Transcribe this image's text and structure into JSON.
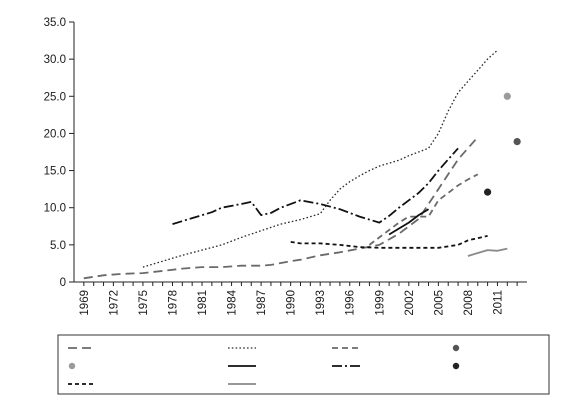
{
  "chart_data": {
    "type": "line",
    "title": "",
    "xlabel": "",
    "ylabel": "",
    "xlim": [
      1968,
      2014
    ],
    "ylim": [
      0,
      35
    ],
    "x_ticks": [
      "1969",
      "1972",
      "1975",
      "1978",
      "1981",
      "1984",
      "1987",
      "1990",
      "1993",
      "1996",
      "1999",
      "2002",
      "2005",
      "2008",
      "2011"
    ],
    "y_ticks": [
      "0",
      "5.0",
      "10.0",
      "15.0",
      "20.0",
      "25.0",
      "30.0",
      "35.0"
    ],
    "grid": false,
    "legend": "bottom",
    "series": [
      {
        "key": "long-grey-dash",
        "style": "dashed",
        "color": "#6a6a6a",
        "points": [
          [
            1969,
            0.5
          ],
          [
            1971,
            0.9
          ],
          [
            1973,
            1.1
          ],
          [
            1975,
            1.2
          ],
          [
            1977,
            1.5
          ],
          [
            1979,
            1.8
          ],
          [
            1981,
            2.0
          ],
          [
            1983,
            2.0
          ],
          [
            1985,
            2.2
          ],
          [
            1987,
            2.2
          ],
          [
            1988,
            2.3
          ],
          [
            1990,
            2.8
          ],
          [
            1991,
            3.0
          ],
          [
            1993,
            3.6
          ],
          [
            1995,
            4.0
          ],
          [
            1997,
            4.5
          ],
          [
            1999,
            5.0
          ],
          [
            2001,
            6.5
          ],
          [
            2003,
            8.5
          ],
          [
            2004,
            10.5
          ],
          [
            2005,
            12.5
          ],
          [
            2006,
            14.5
          ],
          [
            2007,
            16.5
          ],
          [
            2008,
            18.0
          ],
          [
            2009,
            19.5
          ]
        ]
      },
      {
        "key": "dotted",
        "style": "dotted",
        "color": "#2a2a2a",
        "points": [
          [
            1975,
            2.0
          ],
          [
            1977,
            2.8
          ],
          [
            1979,
            3.6
          ],
          [
            1981,
            4.3
          ],
          [
            1983,
            5.0
          ],
          [
            1985,
            6.0
          ],
          [
            1987,
            6.9
          ],
          [
            1989,
            7.8
          ],
          [
            1991,
            8.4
          ],
          [
            1993,
            9.2
          ],
          [
            1994,
            11.0
          ],
          [
            1995,
            12.5
          ],
          [
            1996,
            13.5
          ],
          [
            1997,
            14.3
          ],
          [
            1998,
            15.0
          ],
          [
            1999,
            15.6
          ],
          [
            2001,
            16.4
          ],
          [
            2002,
            17.0
          ],
          [
            2004,
            18.0
          ],
          [
            2005,
            20.0
          ],
          [
            2006,
            23.0
          ],
          [
            2007,
            25.5
          ],
          [
            2008,
            27.0
          ],
          [
            2009,
            28.5
          ],
          [
            2010,
            30.0
          ],
          [
            2011,
            31.2
          ]
        ]
      },
      {
        "key": "short-grey-dash",
        "style": "dashed",
        "color": "#6a6a6a",
        "points": [
          [
            1998,
            5.0
          ],
          [
            1999,
            6.0
          ],
          [
            2000,
            7.0
          ],
          [
            2001,
            8.0
          ],
          [
            2002,
            8.8
          ],
          [
            2003,
            8.8
          ],
          [
            2004,
            8.8
          ],
          [
            2005,
            11.0
          ],
          [
            2006,
            12.0
          ],
          [
            2007,
            13.0
          ],
          [
            2008,
            13.8
          ],
          [
            2009,
            14.5
          ]
        ]
      },
      {
        "key": "black-dash-dot",
        "style": "dashdot",
        "color": "#111111",
        "points": [
          [
            1978,
            7.8
          ],
          [
            1980,
            8.6
          ],
          [
            1982,
            9.4
          ],
          [
            1983,
            10.0
          ],
          [
            1985,
            10.5
          ],
          [
            1986,
            10.8
          ],
          [
            1987,
            9.0
          ],
          [
            1988,
            9.3
          ],
          [
            1989,
            10.0
          ],
          [
            1991,
            11.0
          ],
          [
            1993,
            10.5
          ],
          [
            1995,
            9.8
          ],
          [
            1997,
            8.8
          ],
          [
            1999,
            8.0
          ],
          [
            2000,
            8.9
          ],
          [
            2001,
            10.0
          ],
          [
            2002,
            11.0
          ],
          [
            2003,
            12.0
          ],
          [
            2004,
            13.3
          ],
          [
            2005,
            15.0
          ],
          [
            2006,
            16.5
          ],
          [
            2007,
            18.0
          ]
        ]
      },
      {
        "key": "black-solid",
        "style": "solid",
        "color": "#111111",
        "points": [
          [
            2000,
            6.4
          ],
          [
            2001,
            7.2
          ],
          [
            2002,
            8.0
          ],
          [
            2003,
            9.0
          ],
          [
            2004,
            9.8
          ]
        ]
      },
      {
        "key": "black-short-dash",
        "style": "dashed",
        "color": "#111111",
        "points": [
          [
            1990,
            5.4
          ],
          [
            1991,
            5.2
          ],
          [
            1993,
            5.2
          ],
          [
            1995,
            5.0
          ],
          [
            1997,
            4.7
          ],
          [
            1999,
            4.6
          ],
          [
            2001,
            4.6
          ],
          [
            2003,
            4.6
          ],
          [
            2005,
            4.6
          ],
          [
            2007,
            5.0
          ],
          [
            2008,
            5.6
          ],
          [
            2010,
            6.2
          ]
        ]
      },
      {
        "key": "grey-solid",
        "style": "solid",
        "color": "#8a8a8a",
        "points": [
          [
            2008,
            3.5
          ],
          [
            2009,
            3.9
          ],
          [
            2010,
            4.3
          ],
          [
            2011,
            4.2
          ],
          [
            2012,
            4.5
          ]
        ]
      }
    ],
    "points": [
      {
        "key": "dark-grey-point",
        "x": 2013,
        "y": 18.9,
        "color": "#555555"
      },
      {
        "key": "light-grey-point",
        "x": 2012,
        "y": 25.0,
        "color": "#9a9a9a"
      },
      {
        "key": "black-point",
        "x": 2010,
        "y": 12.1,
        "color": "#222222"
      }
    ],
    "legend_entries": [
      {
        "series": "long-grey-dash",
        "text": ""
      },
      {
        "series": "dotted",
        "text": ""
      },
      {
        "series": "short-grey-dash",
        "text": ""
      },
      {
        "series": "dark-grey-point",
        "text": ""
      },
      {
        "series": "light-grey-point",
        "text": ""
      },
      {
        "series": "black-solid",
        "text": ""
      },
      {
        "series": "black-dash-dot",
        "text": ""
      },
      {
        "series": "black-point",
        "text": ""
      },
      {
        "series": "black-short-dash",
        "text": ""
      },
      {
        "series": "grey-solid",
        "text": ""
      }
    ]
  }
}
